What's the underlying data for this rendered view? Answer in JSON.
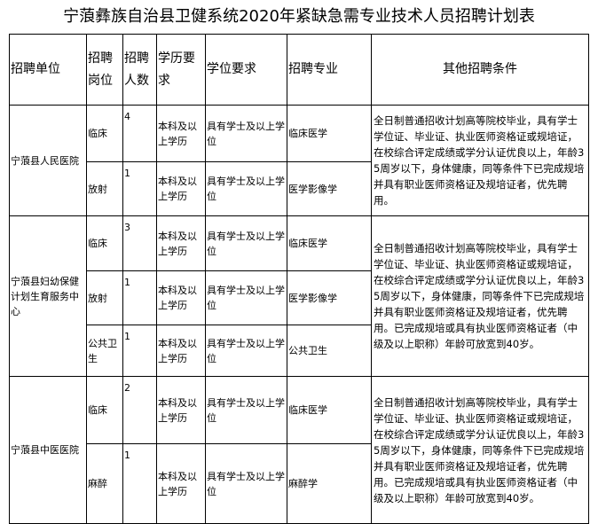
{
  "title": "宁蒗彝族自治县卫健系统2020年紧缺急需专业技术人员招聘计划表",
  "headers": [
    "招聘单位",
    "招聘岗位",
    "招聘人数",
    "学历要求",
    "学位要求",
    "招聘专业",
    "其他招聘条件"
  ],
  "units": [
    {
      "name": "宁蒗县人民医院",
      "other": "全日制普通招收计划高等院校毕业，具有学士学位证、毕业证、执业医师资格证或规培证，在校综合评定成绩或学分认证优良以上，年龄35周岁以下，身体健康，同等条件下已完成规培并具有职业医师资格证及规培证者，优先聘用。",
      "posts": [
        {
          "post": "临床",
          "count": "4",
          "edu": "本科及以上学历",
          "degree": "具有学士及以上学位",
          "major": "临床医学"
        },
        {
          "post": "放射",
          "count": "1",
          "edu": "本科及以上学历",
          "degree": "具有学士及以上学位",
          "major": "医学影像学"
        }
      ]
    },
    {
      "name": "宁蒗县妇幼保健计划生育服务中心",
      "other": "全日制普通招收计划高等院校毕业，具有学士学位证、毕业证、执业医师资格证或规培证，在校综合评定成绩或学分认证优良以上，年龄35周岁以下，身体健康，同等条件下已完成规培并具有职业医师资格证及规培证者，优先聘用。已完成规培或具有执业医师资格证者（中级及以上职称）年龄可放宽到40岁。",
      "posts": [
        {
          "post": "临床",
          "count": "3",
          "edu": "本科及以上学历",
          "degree": "具有学士及以上学位",
          "major": "临床医学"
        },
        {
          "post": "放射",
          "count": "1",
          "edu": "本科及以上学历",
          "degree": "具有学士及以上学位",
          "major": "医学影像学"
        },
        {
          "post": "公共卫生",
          "count": "1",
          "edu": "本科及以上学历",
          "degree": "具有学士及以上学位",
          "major": "公共卫生"
        }
      ]
    },
    {
      "name": "宁蒗县中医医院",
      "other": "全日制普通招收计划高等院校毕业，具有学士学位证、毕业证、执业医师资格证或规培证，在校综合评定成绩或学分认证优良以上，年龄35周岁以下，身体健康，同等条件下已完成规培并具有职业医师资格证及规培证者，优先聘用。已完成规培或具有执业医师资格证者（中级及以上职称）年龄可放宽到40岁。",
      "posts": [
        {
          "post": "临床",
          "count": "2",
          "edu": "本科及以上学历",
          "degree": "具有学士及以上学位",
          "major": "临床医学"
        },
        {
          "post": "麻醉",
          "count": "1",
          "edu": "本科及以上学历",
          "degree": "具有学士及以上学位",
          "major": "麻醉学"
        }
      ]
    }
  ]
}
